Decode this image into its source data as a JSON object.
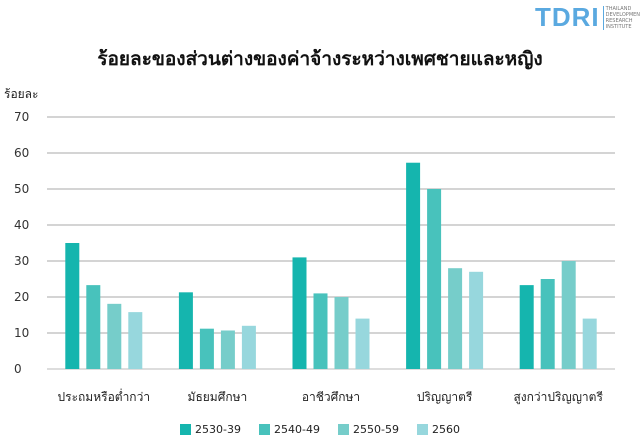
{
  "logo": {
    "text": "TDRI",
    "subtitle": "THAILAND DEVELOPMENT RESEARCH INSTITUTE"
  },
  "chart_data": {
    "type": "bar",
    "title": "ร้อยละของส่วนต่างของค่าจ้างระหว่างเพศชายและหญิง",
    "ylabel": "ร้อยละ",
    "xlabel": "",
    "ylim": [
      0,
      70
    ],
    "yticks": [
      0,
      10,
      20,
      30,
      40,
      50,
      60,
      70
    ],
    "grid": true,
    "legend_position": "bottom",
    "categories": [
      "ประถมหรือต่ำกว่า",
      "มัธยมศึกษา",
      "อาชีวศึกษา",
      "ปริญญาตรี",
      "สูงกว่าปริญญาตรี"
    ],
    "series": [
      {
        "name": "2530-39",
        "color": "#15b5ae",
        "values": [
          35,
          21.3,
          31,
          57.3,
          23.3
        ]
      },
      {
        "name": "2540-49",
        "color": "#48c2bc",
        "values": [
          23.3,
          11.2,
          21,
          50,
          25
        ]
      },
      {
        "name": "2550-59",
        "color": "#76cdca",
        "values": [
          18.1,
          10.7,
          20,
          28,
          30
        ]
      },
      {
        "name": "2560",
        "color": "#97d7dd",
        "values": [
          15.8,
          12,
          14,
          27,
          14
        ]
      }
    ]
  }
}
